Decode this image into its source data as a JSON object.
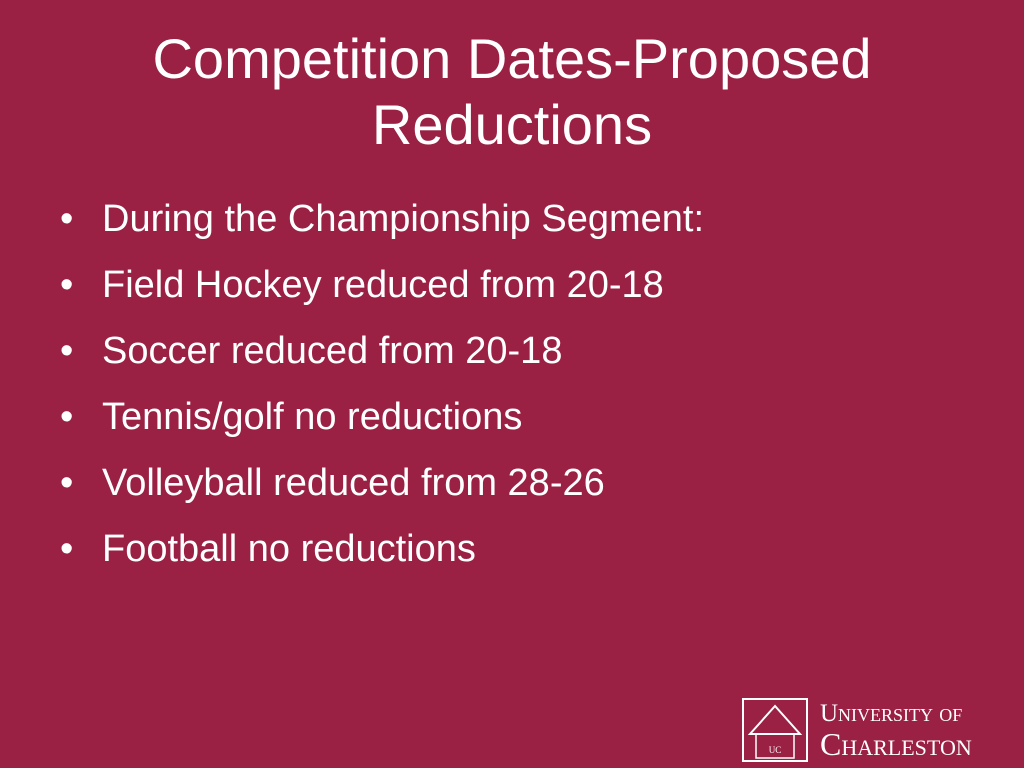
{
  "slide": {
    "title": "Competition Dates-Proposed Reductions",
    "bullets": [
      "During the Championship Segment:",
      "Field Hockey reduced from 20-18",
      "Soccer reduced from 20-18",
      "Tennis/golf no reductions",
      "Volleyball reduced from 28-26",
      "Football no reductions"
    ],
    "logo": {
      "line1": "University of",
      "line2": "Charleston",
      "mark": "UC"
    }
  }
}
